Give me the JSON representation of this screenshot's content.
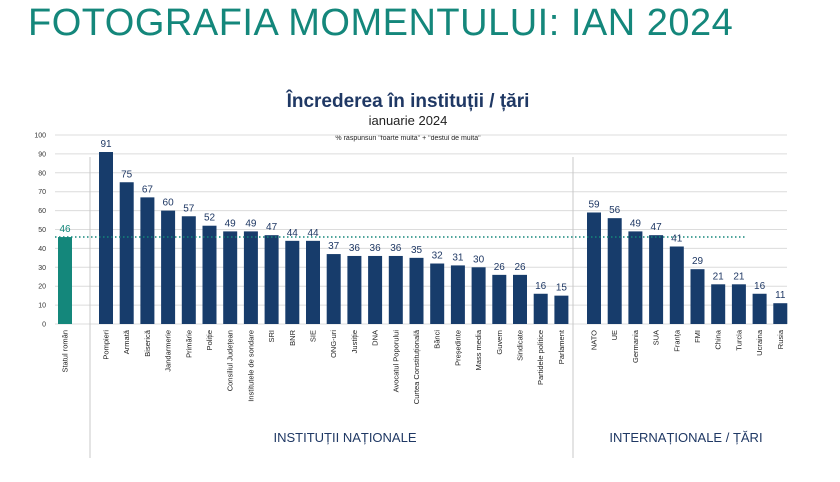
{
  "slide_title": "FOTOGRAFIA MOMENTULUI: IAN 2024",
  "chart_data": {
    "type": "bar",
    "title": "Încrederea în instituții / țări",
    "subtitle": "ianuarie 2024",
    "note": "% răspunsuri \"foarte multă\" + \"destul de multă\"",
    "ylim": [
      0,
      100
    ],
    "yticks": [
      0,
      10,
      20,
      30,
      40,
      50,
      60,
      70,
      80,
      90,
      100
    ],
    "grid": true,
    "reference_line": 46,
    "groups": [
      {
        "label": "",
        "categories": [
          "Statul român"
        ],
        "values": [
          46
        ],
        "color": "#14877b",
        "label_color": "#14877b"
      },
      {
        "label": "INSTITUȚII NAȚIONALE",
        "categories": [
          "Pompieri",
          "Armată",
          "Biserică",
          "Jandarmerie",
          "Primărie",
          "Poliție",
          "Consiliul Județean",
          "Institutele de sondare",
          "SRI",
          "BNR",
          "SIE",
          "ONG-uri",
          "Justiție",
          "DNA",
          "Avocatul Poporului",
          "Curtea Constituțională",
          "Bănci",
          "Președinte",
          "Mass media",
          "Guvern",
          "Sindicate",
          "Partidele politice",
          "Parlament"
        ],
        "values": [
          91,
          75,
          67,
          60,
          57,
          52,
          49,
          49,
          47,
          44,
          44,
          37,
          36,
          36,
          36,
          35,
          32,
          31,
          30,
          26,
          26,
          16,
          15
        ],
        "color": "#173c6b",
        "label_color": "#1f3864"
      },
      {
        "label": "INTERNAȚIONALE / ȚĂRI",
        "categories": [
          "NATO",
          "UE",
          "Germania",
          "SUA",
          "Franța",
          "FMI",
          "China",
          "Turcia",
          "Ucraina",
          "Rusia"
        ],
        "values": [
          59,
          56,
          49,
          47,
          41,
          29,
          21,
          21,
          16,
          11
        ],
        "color": "#173c6b",
        "label_color": "#1f3864"
      }
    ]
  }
}
